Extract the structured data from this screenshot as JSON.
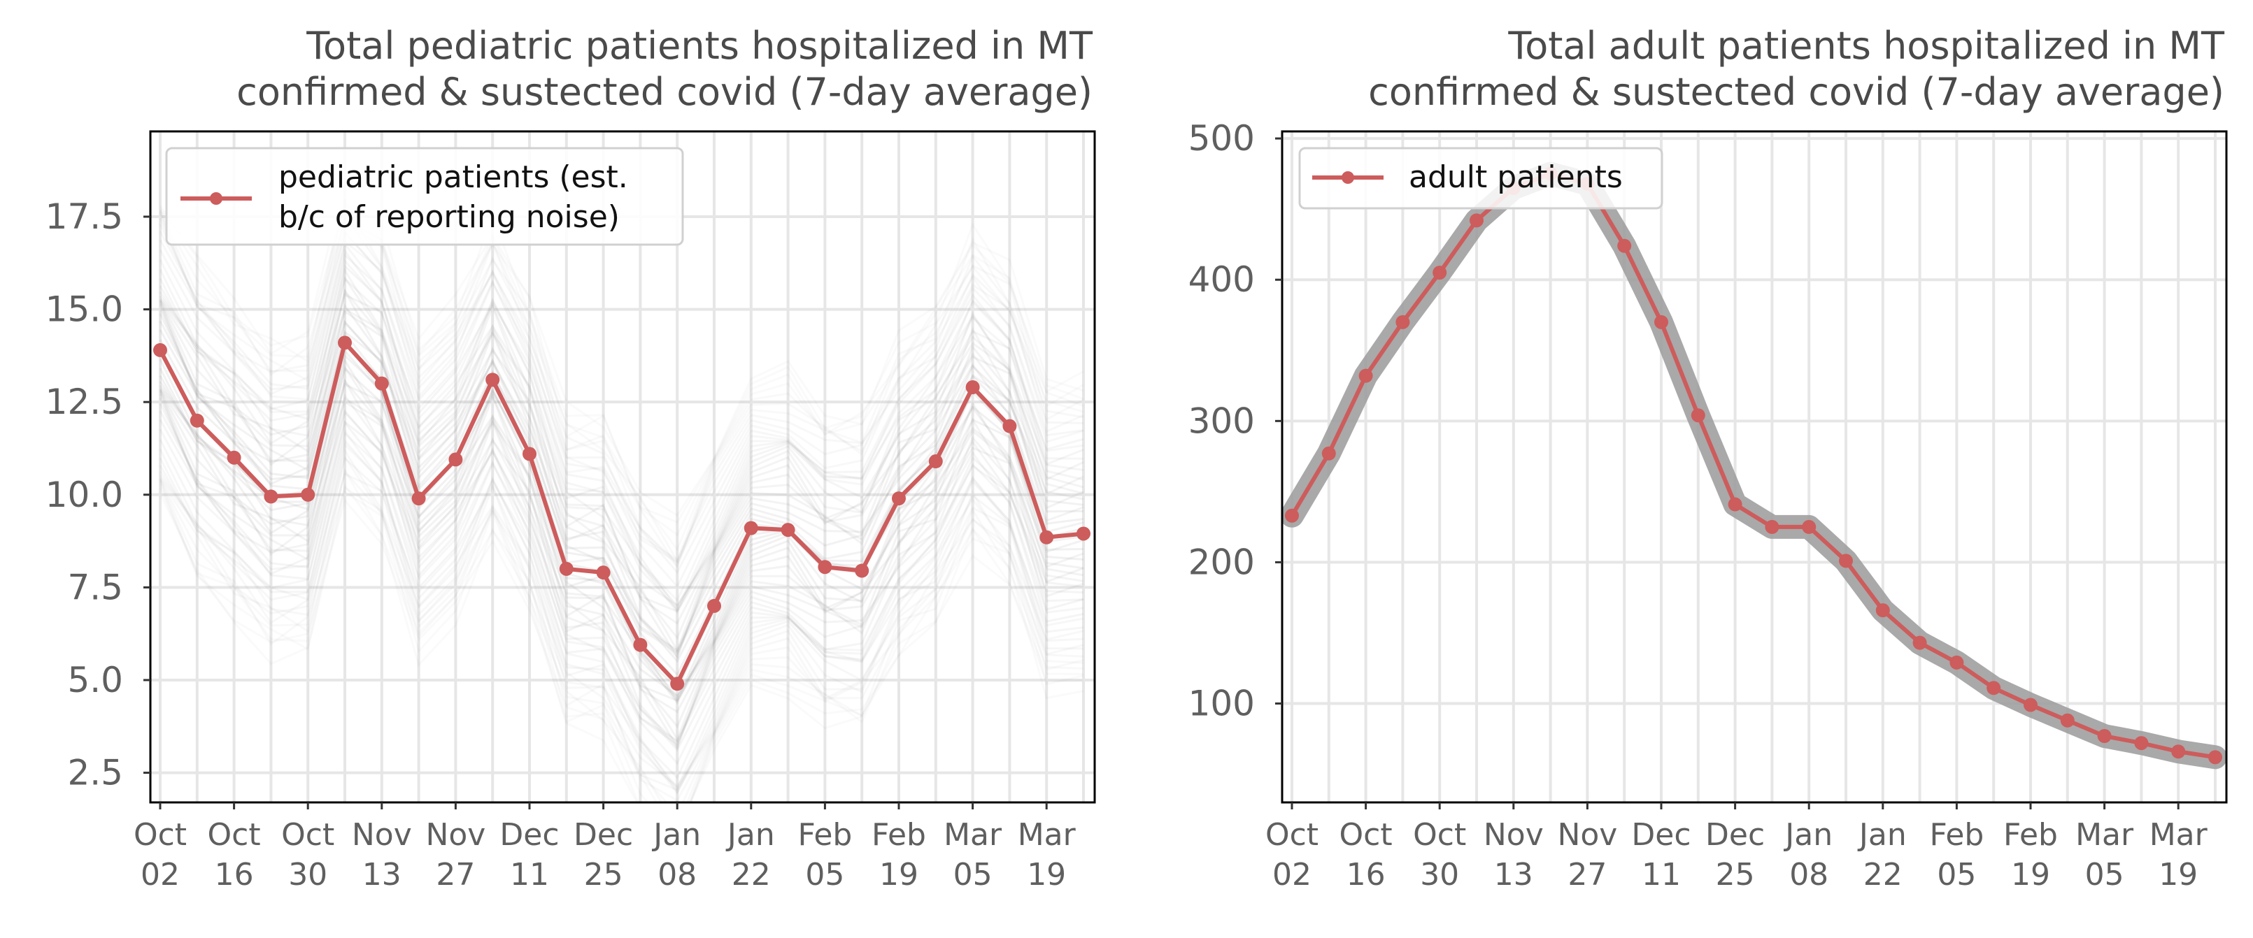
{
  "chart_data": [
    {
      "type": "line",
      "title": "Total pediatric patients hospitalized in MT",
      "subtitle": "confirmed & sustected covid (7-day average)",
      "xlabel": "",
      "ylabel": "",
      "x_tick_labels": [
        [
          "Oct",
          "02"
        ],
        [
          "Oct",
          "16"
        ],
        [
          "Oct",
          "30"
        ],
        [
          "Nov",
          "13"
        ],
        [
          "Nov",
          "27"
        ],
        [
          "Dec",
          "11"
        ],
        [
          "Dec",
          "25"
        ],
        [
          "Jan",
          "08"
        ],
        [
          "Jan",
          "22"
        ],
        [
          "Feb",
          "05"
        ],
        [
          "Feb",
          "19"
        ],
        [
          "Mar",
          "05"
        ],
        [
          "Mar",
          "19"
        ]
      ],
      "y_ticks": [
        2.5,
        5.0,
        7.5,
        10.0,
        12.5,
        15.0,
        17.5
      ],
      "y_tick_labels": [
        "2.5",
        "5.0",
        "7.5",
        "10.0",
        "12.5",
        "15.0",
        "17.5"
      ],
      "ylim": [
        1.7,
        19.8
      ],
      "grid": true,
      "legend_position": "upper-left",
      "series": [
        {
          "name": "pediatric patients (est.\nb/c of reporting noise)",
          "legend_lines": [
            "pediatric patients (est.",
            "b/c of reporting noise)"
          ],
          "color": "#cd5c5c",
          "x": [
            "2021-10-02",
            "2021-10-09",
            "2021-10-16",
            "2021-10-23",
            "2021-10-30",
            "2021-11-06",
            "2021-11-13",
            "2021-11-20",
            "2021-11-27",
            "2021-12-04",
            "2021-12-11",
            "2021-12-18",
            "2021-12-25",
            "2022-01-01",
            "2022-01-08",
            "2022-01-15",
            "2022-01-22",
            "2022-01-29",
            "2022-02-05",
            "2022-02-12",
            "2022-02-19",
            "2022-02-26",
            "2022-03-05",
            "2022-03-12",
            "2022-03-19",
            "2022-03-26"
          ],
          "values": [
            13.9,
            12.0,
            11.0,
            9.95,
            10.0,
            14.1,
            13.0,
            9.9,
            10.95,
            13.1,
            11.1,
            8.0,
            7.9,
            5.95,
            4.9,
            7.0,
            9.1,
            9.05,
            8.05,
            7.95,
            9.9,
            10.9,
            12.9,
            11.85,
            8.85,
            8.95
          ]
        }
      ],
      "uncertainty_band": {
        "color": "#9a9a9a",
        "lower_offset": -4.2,
        "upper_offset": 4.2
      }
    },
    {
      "type": "line",
      "title": "Total adult patients hospitalized in MT",
      "subtitle": "confirmed & sustected covid (7-day average)",
      "xlabel": "",
      "ylabel": "",
      "x_tick_labels": [
        [
          "Oct",
          "02"
        ],
        [
          "Oct",
          "16"
        ],
        [
          "Oct",
          "30"
        ],
        [
          "Nov",
          "13"
        ],
        [
          "Nov",
          "27"
        ],
        [
          "Dec",
          "11"
        ],
        [
          "Dec",
          "25"
        ],
        [
          "Jan",
          "08"
        ],
        [
          "Jan",
          "22"
        ],
        [
          "Feb",
          "05"
        ],
        [
          "Feb",
          "19"
        ],
        [
          "Mar",
          "05"
        ],
        [
          "Mar",
          "19"
        ]
      ],
      "y_ticks": [
        100,
        200,
        300,
        400,
        500
      ],
      "y_tick_labels": [
        "100",
        "200",
        "300",
        "400",
        "500"
      ],
      "ylim": [
        30,
        505
      ],
      "grid": true,
      "legend_position": "upper-left",
      "series": [
        {
          "name": "adult patients",
          "color": "#cd5c5c",
          "x": [
            "2021-10-02",
            "2021-10-09",
            "2021-10-16",
            "2021-10-23",
            "2021-10-30",
            "2021-11-06",
            "2021-11-13",
            "2021-11-20",
            "2021-11-27",
            "2021-12-04",
            "2021-12-11",
            "2021-12-18",
            "2021-12-25",
            "2022-01-01",
            "2022-01-08",
            "2022-01-15",
            "2022-01-22",
            "2022-01-29",
            "2022-02-05",
            "2022-02-12",
            "2022-02-19",
            "2022-02-26",
            "2022-03-05",
            "2022-03-12",
            "2022-03-19",
            "2022-03-26"
          ],
          "values": [
            233,
            277,
            332,
            370,
            405,
            442,
            465,
            475,
            468,
            424,
            370,
            304,
            241,
            225,
            225,
            201,
            166,
            143,
            129,
            111,
            99,
            88,
            77,
            72,
            66,
            62
          ]
        }
      ],
      "uncertainty_band": {
        "color": "#9a9a9a",
        "half_width": 9
      }
    }
  ]
}
